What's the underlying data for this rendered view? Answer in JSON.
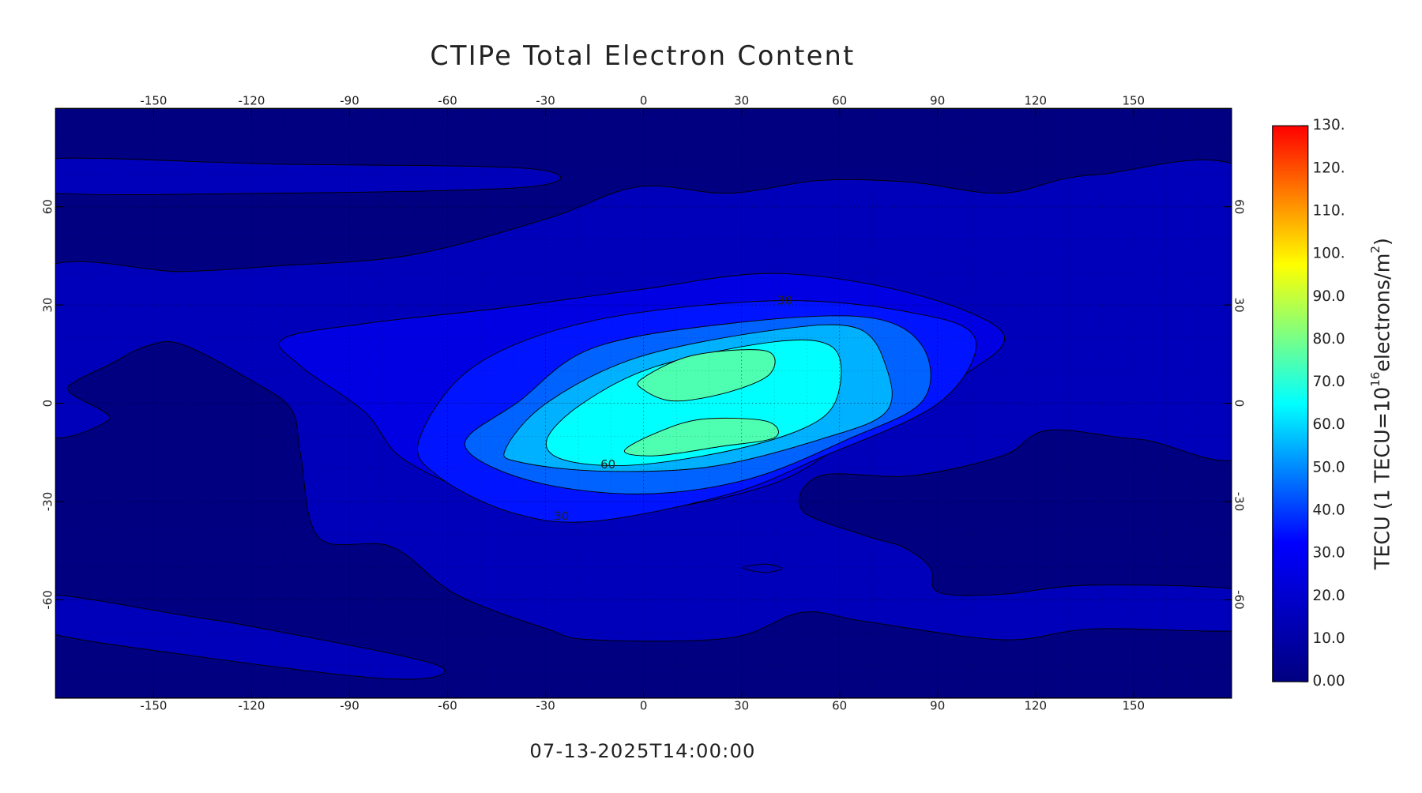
{
  "chart_data": {
    "type": "contour",
    "title": "CTIPe Total Electron Content",
    "subtitle": "07-13-2025T14:00:00",
    "xlim": [
      -180,
      180
    ],
    "ylim": [
      -90,
      90
    ],
    "xticks": [
      -150,
      -120,
      -90,
      -60,
      -30,
      0,
      30,
      60,
      90,
      120,
      150
    ],
    "yticks": [
      -60,
      -30,
      0,
      30,
      60
    ],
    "grid": true,
    "contour_levels": [
      10,
      20,
      30,
      40,
      50,
      60,
      70
    ],
    "contour_labels": [
      30,
      60,
      30
    ],
    "colorbar": {
      "lim": [
        0,
        130
      ],
      "ticks": [
        {
          "value": 0,
          "label": "0.00"
        },
        {
          "value": 10,
          "label": "10.0"
        },
        {
          "value": 20,
          "label": "20.0"
        },
        {
          "value": 30,
          "label": "30.0"
        },
        {
          "value": 40,
          "label": "40.0"
        },
        {
          "value": 50,
          "label": "50.0"
        },
        {
          "value": 60,
          "label": "60.0"
        },
        {
          "value": 70,
          "label": "70.0"
        },
        {
          "value": 80,
          "label": "80.0"
        },
        {
          "value": 90,
          "label": "90.0"
        },
        {
          "value": 100,
          "label": "100."
        },
        {
          "value": 110,
          "label": "110."
        },
        {
          "value": 120,
          "label": "120."
        },
        {
          "value": 130,
          "label": "130."
        }
      ],
      "label": [
        "TECU (1 TECU=10",
        "16",
        "electrons/m",
        "2",
        ")"
      ],
      "colormap": [
        "#000080",
        "#0000ff",
        "#00ffff",
        "#ffff00",
        "#ff0000"
      ]
    }
  }
}
